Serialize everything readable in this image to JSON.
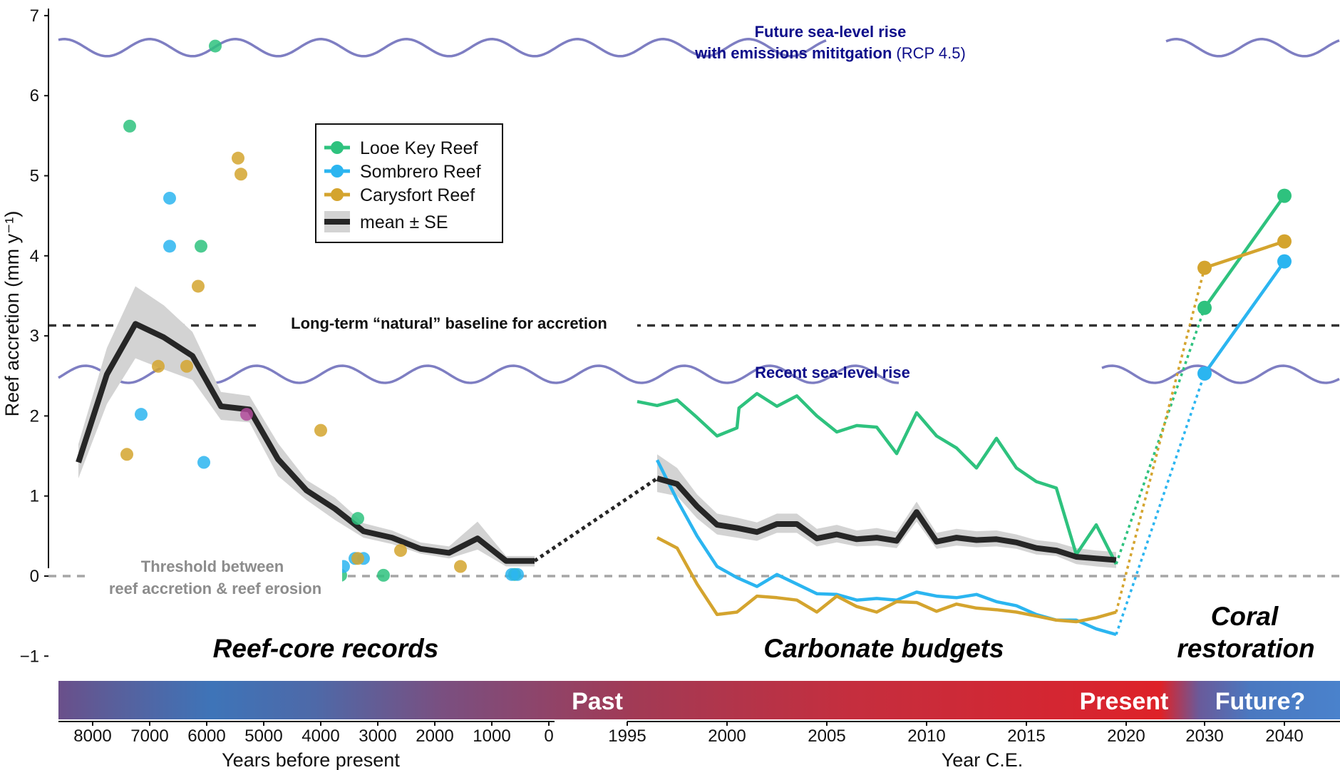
{
  "chart_data": {
    "type": "line",
    "ylabel": "Reef accretion (mm y⁻¹)",
    "ylim": [
      -1.3,
      7
    ],
    "y_ticks": [
      "−1",
      "0",
      "1",
      "2",
      "3",
      "4",
      "5",
      "6",
      "7"
    ],
    "grid": false,
    "legend": {
      "placement": "top-left",
      "entries": [
        "Looe Key Reef",
        "Sombrero Reef",
        "Carysfort Reef",
        "mean ± SE"
      ]
    },
    "colors": {
      "looe": "#2ec27e",
      "sombrero": "#2bb5f0",
      "carysfort": "#d4a42e",
      "mean": "#262626",
      "se_band": "#d3d3d3",
      "sea_level": "#7e7ec2",
      "dashed": "#333333",
      "threshold": "#a6a6a6"
    },
    "panels": {
      "past": {
        "xlabel": "Years before present",
        "x_ticks": [
          "8000",
          "7000",
          "6000",
          "5000",
          "4000",
          "3000",
          "2000",
          "1000",
          "0"
        ],
        "looe_points": [
          [
            7350,
            5.62
          ],
          [
            5850,
            6.62
          ],
          [
            6100,
            4.12
          ],
          [
            3350,
            0.72
          ],
          [
            3650,
            0.01
          ],
          [
            2900,
            0.01
          ],
          [
            600,
            0.02
          ]
        ],
        "sombrero_points": [
          [
            6650,
            4.72
          ],
          [
            6650,
            4.12
          ],
          [
            7150,
            2.02
          ],
          [
            6050,
            1.42
          ],
          [
            3600,
            0.12
          ],
          [
            3400,
            0.22
          ],
          [
            3250,
            0.22
          ],
          [
            650,
            0.02
          ],
          [
            550,
            0.02
          ]
        ],
        "carysfort_points": [
          [
            5450,
            5.22
          ],
          [
            5400,
            5.02
          ],
          [
            6150,
            3.62
          ],
          [
            6850,
            2.62
          ],
          [
            6350,
            2.62
          ],
          [
            7400,
            1.52
          ],
          [
            4000,
            1.82
          ],
          [
            2600,
            0.32
          ],
          [
            1550,
            0.12
          ],
          [
            3350,
            0.22
          ]
        ],
        "purple_points": [
          [
            5300,
            2.02
          ]
        ],
        "mean": [
          [
            8250,
            1.42
          ],
          [
            7750,
            2.52
          ],
          [
            7250,
            3.15
          ],
          [
            6750,
            2.98
          ],
          [
            6250,
            2.75
          ],
          [
            5750,
            2.12
          ],
          [
            5250,
            2.08
          ],
          [
            4750,
            1.46
          ],
          [
            4250,
            1.07
          ],
          [
            3750,
            0.84
          ],
          [
            3250,
            0.56
          ],
          [
            2750,
            0.48
          ],
          [
            2250,
            0.34
          ],
          [
            1750,
            0.29
          ],
          [
            1250,
            0.47
          ],
          [
            750,
            0.19
          ],
          [
            250,
            0.19
          ]
        ],
        "se_lower": [
          1.22,
          2.15,
          2.72,
          2.58,
          2.45,
          1.95,
          1.92,
          1.25,
          0.95,
          0.7,
          0.48,
          0.4,
          0.28,
          0.22,
          0.33,
          0.12,
          0.12
        ],
        "se_upper": [
          1.65,
          2.85,
          3.62,
          3.38,
          3.05,
          2.3,
          2.25,
          1.66,
          1.2,
          0.98,
          0.66,
          0.57,
          0.42,
          0.37,
          0.68,
          0.25,
          0.25
        ]
      },
      "budgets": {
        "xlabel": "Year C.E.",
        "x_ticks": [
          "1995",
          "2000",
          "2005",
          "2010",
          "2015",
          "2020"
        ],
        "looe": [
          [
            1995.5,
            2.18
          ],
          [
            1996.5,
            2.13
          ],
          [
            1997.5,
            2.2
          ],
          [
            1998.5,
            1.98
          ],
          [
            1999.5,
            1.75
          ],
          [
            2000.5,
            1.85
          ],
          [
            2000.6,
            2.1
          ],
          [
            2001.5,
            2.28
          ],
          [
            2002.5,
            2.12
          ],
          [
            2003.5,
            2.25
          ],
          [
            2004.5,
            2.0
          ],
          [
            2005.5,
            1.8
          ],
          [
            2006.5,
            1.88
          ],
          [
            2007.5,
            1.86
          ],
          [
            2008.5,
            1.53
          ],
          [
            2009.5,
            2.04
          ],
          [
            2010.5,
            1.75
          ],
          [
            2011.5,
            1.6
          ],
          [
            2012.5,
            1.35
          ],
          [
            2013.5,
            1.72
          ],
          [
            2014.5,
            1.35
          ],
          [
            2015.5,
            1.18
          ],
          [
            2016.5,
            1.1
          ],
          [
            2017.5,
            0.27
          ],
          [
            2018.5,
            0.64
          ],
          [
            2019.5,
            0.15
          ]
        ],
        "sombrero": [
          [
            1996.5,
            1.45
          ],
          [
            1997.5,
            0.95
          ],
          [
            1998.5,
            0.5
          ],
          [
            1999.5,
            0.12
          ],
          [
            2000.5,
            -0.02
          ],
          [
            2001.5,
            -0.13
          ],
          [
            2002.5,
            0.02
          ],
          [
            2003.5,
            -0.1
          ],
          [
            2004.5,
            -0.22
          ],
          [
            2005.5,
            -0.23
          ],
          [
            2006.5,
            -0.3
          ],
          [
            2007.5,
            -0.28
          ],
          [
            2008.5,
            -0.3
          ],
          [
            2009.5,
            -0.2
          ],
          [
            2010.5,
            -0.25
          ],
          [
            2011.5,
            -0.27
          ],
          [
            2012.5,
            -0.23
          ],
          [
            2013.5,
            -0.32
          ],
          [
            2014.5,
            -0.37
          ],
          [
            2015.5,
            -0.48
          ],
          [
            2016.5,
            -0.55
          ],
          [
            2017.5,
            -0.55
          ],
          [
            2018.5,
            -0.66
          ],
          [
            2019.5,
            -0.73
          ]
        ],
        "carysfort": [
          [
            1996.5,
            0.48
          ],
          [
            1997.5,
            0.35
          ],
          [
            1998.5,
            -0.1
          ],
          [
            1999.5,
            -0.48
          ],
          [
            2000.5,
            -0.45
          ],
          [
            2001.5,
            -0.25
          ],
          [
            2002.5,
            -0.27
          ],
          [
            2003.5,
            -0.3
          ],
          [
            2004.5,
            -0.45
          ],
          [
            2005.5,
            -0.25
          ],
          [
            2006.5,
            -0.38
          ],
          [
            2007.5,
            -0.45
          ],
          [
            2008.5,
            -0.32
          ],
          [
            2009.5,
            -0.33
          ],
          [
            2010.5,
            -0.44
          ],
          [
            2011.5,
            -0.35
          ],
          [
            2012.5,
            -0.4
          ],
          [
            2013.5,
            -0.42
          ],
          [
            2014.5,
            -0.45
          ],
          [
            2015.5,
            -0.5
          ],
          [
            2016.5,
            -0.55
          ],
          [
            2017.5,
            -0.57
          ],
          [
            2018.5,
            -0.52
          ],
          [
            2019.5,
            -0.45
          ]
        ],
        "mean": [
          [
            1996.5,
            1.22
          ],
          [
            1997.5,
            1.15
          ],
          [
            1998.5,
            0.87
          ],
          [
            1999.5,
            0.64
          ],
          [
            2000.5,
            0.6
          ],
          [
            2001.5,
            0.55
          ],
          [
            2002.5,
            0.65
          ],
          [
            2003.5,
            0.65
          ],
          [
            2004.5,
            0.47
          ],
          [
            2005.5,
            0.52
          ],
          [
            2006.5,
            0.46
          ],
          [
            2007.5,
            0.48
          ],
          [
            2008.5,
            0.44
          ],
          [
            2009.5,
            0.8
          ],
          [
            2010.5,
            0.43
          ],
          [
            2011.5,
            0.48
          ],
          [
            2012.5,
            0.45
          ],
          [
            2013.5,
            0.46
          ],
          [
            2014.5,
            0.42
          ],
          [
            2015.5,
            0.35
          ],
          [
            2016.5,
            0.32
          ],
          [
            2017.5,
            0.24
          ],
          [
            2018.5,
            0.22
          ],
          [
            2019.5,
            0.2
          ]
        ],
        "se_lower": [
          1.05,
          1.0,
          0.72,
          0.52,
          0.48,
          0.44,
          0.54,
          0.54,
          0.37,
          0.42,
          0.37,
          0.38,
          0.35,
          0.68,
          0.34,
          0.38,
          0.36,
          0.37,
          0.34,
          0.27,
          0.25,
          0.15,
          0.12,
          0.1
        ],
        "se_upper": [
          1.52,
          1.35,
          1.02,
          0.78,
          0.73,
          0.67,
          0.78,
          0.78,
          0.59,
          0.64,
          0.57,
          0.6,
          0.55,
          0.93,
          0.54,
          0.59,
          0.56,
          0.57,
          0.52,
          0.45,
          0.42,
          0.35,
          0.32,
          0.3
        ]
      },
      "restoration": {
        "x_ticks": [
          "2030",
          "2040"
        ],
        "looe": [
          [
            2030,
            3.35
          ],
          [
            2040,
            4.75
          ]
        ],
        "sombrero": [
          [
            2030,
            2.53
          ],
          [
            2040,
            3.93
          ]
        ],
        "carysfort": [
          [
            2030,
            3.85
          ],
          [
            2040,
            4.18
          ]
        ],
        "projection_start": {
          "looe": 0.15,
          "sombrero": -0.73,
          "carysfort": -0.45
        }
      }
    },
    "baseline_value": 3.13,
    "threshold_value": 0.0,
    "sea_level_future_value": 6.6,
    "sea_level_recent_value": 2.52
  },
  "labels": {
    "future_sea_level_line1": "Future sea-level rise",
    "future_sea_level_line2": "with emissions mititgation",
    "future_sea_level_rcp": "(RCP 4.5)",
    "recent_sea_level": "Recent sea-level rise",
    "baseline": "Long-term “natural” baseline for accretion",
    "threshold_line1": "Threshold between",
    "threshold_line2": "reef accretion & reef erosion",
    "section_reef_core": "Reef-core records",
    "section_carbonate": "Carbonate budgets",
    "section_coral_line1": "Coral",
    "section_coral_line2": "restoration",
    "era_past": "Past",
    "era_present": "Present",
    "era_future": "Future?"
  }
}
